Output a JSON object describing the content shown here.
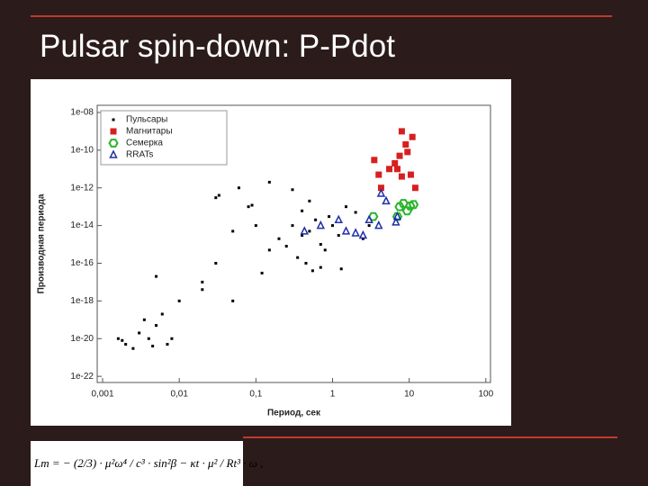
{
  "header": {
    "title": "Pulsar spin-down: P-Pdot"
  },
  "chart_data": {
    "type": "scatter",
    "log_x": true,
    "log_y": true,
    "x_label": "Период, сек",
    "y_label": "Производная периода",
    "xlim": [
      0.00085,
      115
    ],
    "ylim": [
      4.7e-23,
      2.4e-08
    ],
    "xticks": [
      {
        "value": 0.001,
        "label": "0,001"
      },
      {
        "value": 0.01,
        "label": "0,01"
      },
      {
        "value": 0.1,
        "label": "0,1"
      },
      1,
      10,
      100
    ],
    "yticks": [
      {
        "value": 1e-22,
        "label": "1e-22"
      },
      {
        "value": 1e-20,
        "label": "1e-20"
      },
      {
        "value": 1e-18,
        "label": "1e-18"
      },
      {
        "value": 1e-16,
        "label": "1e-16"
      },
      {
        "value": 1e-14,
        "label": "1e-14"
      },
      {
        "value": 1e-12,
        "label": "1e-12"
      },
      {
        "value": 1e-10,
        "label": "1e-10"
      },
      {
        "value": 1e-08,
        "label": "1e-08"
      }
    ],
    "legend": "upper left",
    "series": [
      {
        "name": "Пульсары",
        "color": "#000000",
        "marker": "dot",
        "x": [
          0.3,
          0.5,
          0.7,
          0.4,
          0.6,
          1.0,
          0.8,
          1.2,
          0.25,
          0.35,
          0.45,
          0.55,
          1.5,
          2,
          0.9,
          0.2,
          0.15,
          0.12,
          0.08,
          0.1,
          0.05,
          0.03,
          0.089,
          0.033,
          0.06,
          0.15,
          0.3,
          0.5,
          1.3,
          2.5,
          3,
          0.7,
          0.4,
          0.02,
          0.01,
          0.005,
          0.03,
          0.05,
          0.02,
          0.0016,
          0.002,
          0.003,
          0.004,
          0.005,
          0.0025,
          0.006,
          0.0035,
          0.008,
          0.0045,
          0.0018,
          0.007
        ],
        "values": [
          1e-14,
          5e-15,
          1e-15,
          3e-15,
          2e-14,
          1e-14,
          5e-16,
          3e-15,
          8e-16,
          2e-16,
          1e-16,
          4e-17,
          1e-13,
          5e-14,
          3e-14,
          2e-15,
          5e-16,
          3e-17,
          1e-13,
          1e-14,
          5e-15,
          3e-13,
          1.2e-13,
          4e-13,
          1e-12,
          2e-12,
          8e-13,
          2e-13,
          5e-17,
          2e-15,
          1e-14,
          6e-17,
          6e-14,
          1e-17,
          1e-18,
          2e-17,
          1e-16,
          1e-18,
          4e-18,
          1e-20,
          5e-21,
          2e-20,
          1e-20,
          5e-20,
          3e-21,
          2e-19,
          1e-19,
          1e-20,
          4e-21,
          8e-21,
          5e-21
        ]
      },
      {
        "name": "Магнитары",
        "color": "#d62020",
        "marker": "square",
        "x": [
          5.5,
          7.5,
          8,
          9,
          11,
          6.5,
          3.5,
          4.3,
          8,
          10.5,
          12,
          7,
          9.5,
          4
        ],
        "values": [
          1e-11,
          5e-11,
          1e-09,
          2e-10,
          5e-10,
          2e-11,
          3e-11,
          1e-12,
          4e-12,
          5e-12,
          1e-12,
          1e-11,
          8e-11,
          5e-12
        ]
      },
      {
        "name": "Семерка",
        "color": "#2bb52b",
        "marker": "hexagon",
        "x": [
          3.4,
          7,
          8.4,
          10.3,
          11.4,
          9.4,
          7.5
        ],
        "values": [
          3e-14,
          3e-14,
          1.5e-13,
          1.1e-13,
          1.3e-13,
          6e-14,
          1e-13
        ]
      },
      {
        "name": "RRATs",
        "color": "#1f2fa8",
        "marker": "triangle",
        "x": [
          0.7,
          1.5,
          2.5,
          4,
          4.3,
          5,
          6.7,
          3,
          1.2,
          7,
          0.43,
          2.0
        ],
        "values": [
          1e-14,
          5e-15,
          3e-15,
          1e-14,
          5e-13,
          2e-13,
          1.5e-14,
          2e-14,
          2e-14,
          3e-14,
          5e-15,
          4e-15
        ]
      }
    ]
  },
  "formula": "Lm = − (2/3) · μ²ω⁴ / c³ · sin²β − κt · μ² / Rt³ · ω ,"
}
